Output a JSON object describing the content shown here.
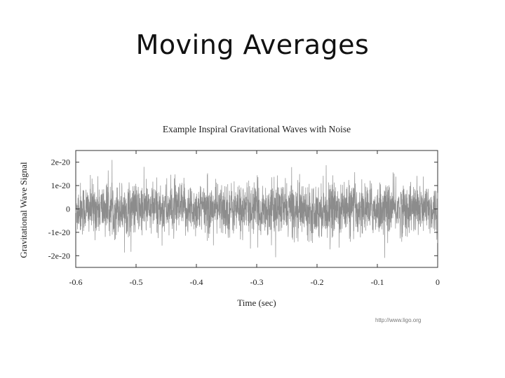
{
  "slide": {
    "title": "Moving Averages",
    "source": "http://www.ligo.org"
  },
  "chart_data": {
    "type": "line",
    "title": "Example Inspiral Gravitational Waves with Noise",
    "xlabel": "Time (sec)",
    "ylabel": "Gravitational Wave Signal",
    "xlim": [
      -0.6,
      0
    ],
    "ylim": [
      -2.5e-20,
      2.5e-20
    ],
    "x_ticks": [
      {
        "value": -0.6,
        "label": "-0.6"
      },
      {
        "value": -0.5,
        "label": "-0.5"
      },
      {
        "value": -0.4,
        "label": "-0.4"
      },
      {
        "value": -0.3,
        "label": "-0.3"
      },
      {
        "value": -0.2,
        "label": "-0.2"
      },
      {
        "value": -0.1,
        "label": "-0.1"
      },
      {
        "value": 0,
        "label": "0"
      }
    ],
    "y_ticks": [
      {
        "value": 2e-20,
        "label": "2e-20"
      },
      {
        "value": 1e-20,
        "label": "1e-20"
      },
      {
        "value": 0,
        "label": "0"
      },
      {
        "value": -1e-20,
        "label": "-1e-20"
      },
      {
        "value": -2e-20,
        "label": "-2e-20"
      }
    ],
    "grid": false,
    "series_color": "#8c8c8c",
    "noise_amplitude": 1e-20
  }
}
